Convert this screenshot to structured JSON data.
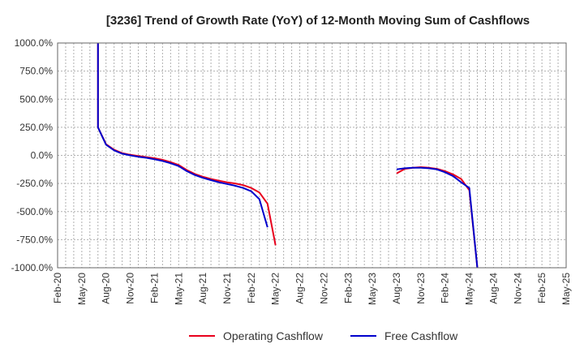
{
  "chart_data": {
    "type": "line",
    "title": "[3236]  Trend of Growth Rate (YoY) of 12-Month Moving Sum of Cashflows",
    "xlabel": "",
    "ylabel": "",
    "ylim": [
      -1000,
      1000
    ],
    "yticks": [
      "1000.0%",
      "750.0%",
      "500.0%",
      "250.0%",
      "0.0%",
      "-250.0%",
      "-500.0%",
      "-750.0%",
      "-1000.0%"
    ],
    "ytick_values": [
      1000,
      750,
      500,
      250,
      0,
      -250,
      -500,
      -750,
      -1000
    ],
    "xticks": [
      "Feb-20",
      "May-20",
      "Aug-20",
      "Nov-20",
      "Feb-21",
      "May-21",
      "Aug-21",
      "Nov-21",
      "Feb-22",
      "May-22",
      "Aug-22",
      "Nov-22",
      "Feb-23",
      "May-23",
      "Aug-23",
      "Nov-23",
      "Feb-24",
      "May-24",
      "Aug-24",
      "Nov-24",
      "Feb-25",
      "May-25"
    ],
    "grid": true,
    "legend_position": "bottom",
    "series": [
      {
        "name": "Operating Cashflow",
        "color": "#e8001c",
        "segments": [
          [
            [
              "Jul-20",
              1500
            ],
            [
              "Jul-20",
              250
            ],
            [
              "Aug-20",
              100
            ],
            [
              "Sep-20",
              50
            ],
            [
              "Oct-20",
              20
            ],
            [
              "Nov-20",
              5
            ],
            [
              "Dec-20",
              -5
            ],
            [
              "Jan-21",
              -15
            ],
            [
              "Feb-21",
              -25
            ],
            [
              "Mar-21",
              -40
            ],
            [
              "Apr-21",
              -60
            ],
            [
              "May-21",
              -85
            ],
            [
              "Jun-21",
              -130
            ],
            [
              "Jul-21",
              -165
            ],
            [
              "Aug-21",
              -190
            ],
            [
              "Sep-21",
              -210
            ],
            [
              "Oct-21",
              -225
            ],
            [
              "Nov-21",
              -240
            ],
            [
              "Dec-21",
              -250
            ],
            [
              "Jan-22",
              -265
            ],
            [
              "Feb-22",
              -290
            ],
            [
              "Mar-22",
              -330
            ],
            [
              "Apr-22",
              -430
            ],
            [
              "May-22",
              -800
            ]
          ],
          [
            [
              "Aug-23",
              -160
            ],
            [
              "Sep-23",
              -120
            ],
            [
              "Oct-23",
              -110
            ],
            [
              "Nov-23",
              -105
            ],
            [
              "Dec-23",
              -110
            ],
            [
              "Jan-24",
              -120
            ],
            [
              "Feb-24",
              -140
            ],
            [
              "Mar-24",
              -170
            ],
            [
              "Apr-24",
              -210
            ],
            [
              "May-24",
              -310
            ],
            [
              "Jun-24",
              -1000
            ]
          ]
        ]
      },
      {
        "name": "Free Cashflow",
        "color": "#0000cc",
        "segments": [
          [
            [
              "Jul-20",
              1500
            ],
            [
              "Jul-20",
              250
            ],
            [
              "Aug-20",
              95
            ],
            [
              "Sep-20",
              45
            ],
            [
              "Oct-20",
              15
            ],
            [
              "Nov-20",
              0
            ],
            [
              "Dec-20",
              -12
            ],
            [
              "Jan-21",
              -22
            ],
            [
              "Feb-21",
              -35
            ],
            [
              "Mar-21",
              -50
            ],
            [
              "Apr-21",
              -70
            ],
            [
              "May-21",
              -95
            ],
            [
              "Jun-21",
              -140
            ],
            [
              "Jul-21",
              -175
            ],
            [
              "Aug-21",
              -200
            ],
            [
              "Sep-21",
              -220
            ],
            [
              "Oct-21",
              -240
            ],
            [
              "Nov-21",
              -255
            ],
            [
              "Dec-21",
              -270
            ],
            [
              "Jan-22",
              -290
            ],
            [
              "Feb-22",
              -320
            ],
            [
              "Mar-22",
              -390
            ],
            [
              "Apr-22",
              -640
            ]
          ],
          [
            [
              "Aug-23",
              -125
            ],
            [
              "Sep-23",
              -115
            ],
            [
              "Oct-23",
              -110
            ],
            [
              "Nov-23",
              -110
            ],
            [
              "Dec-23",
              -115
            ],
            [
              "Jan-24",
              -125
            ],
            [
              "Feb-24",
              -150
            ],
            [
              "Mar-24",
              -185
            ],
            [
              "Apr-24",
              -240
            ],
            [
              "May-24",
              -290
            ],
            [
              "Jun-24",
              -1000
            ]
          ]
        ]
      }
    ]
  }
}
